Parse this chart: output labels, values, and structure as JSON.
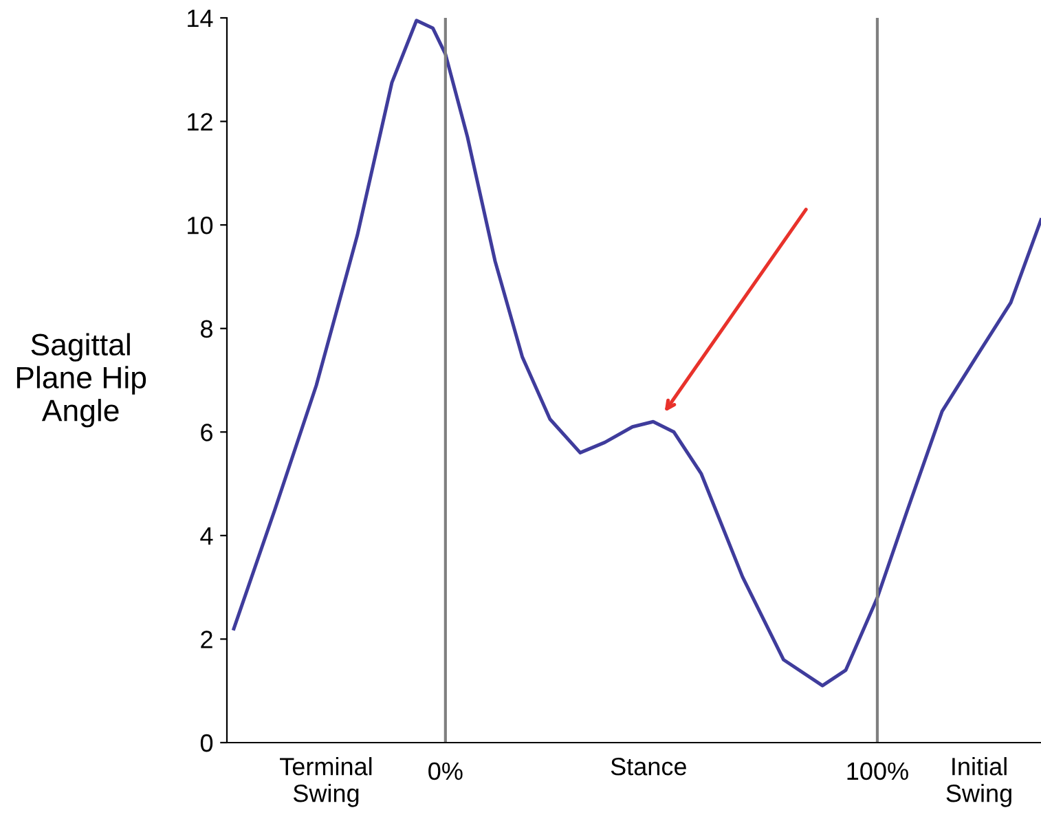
{
  "chart_data": {
    "type": "line",
    "ylabel": "Sagittal\nPlane Hip\nAngle",
    "x": [
      -49.0,
      -39.5,
      -29.9,
      -20.4,
      -12.4,
      -6.7,
      -2.9,
      0,
      5.1,
      11.5,
      17.8,
      24.2,
      31.2,
      36.9,
      43.3,
      48.1,
      52.9,
      59.2,
      68.8,
      78.3,
      87.3,
      92.7,
      100,
      107,
      115,
      122.9,
      130.9,
      137.9
    ],
    "series": [
      {
        "color": "#3f3c9c",
        "values": [
          2.2,
          4.5,
          6.9,
          9.8,
          12.75,
          13.95,
          13.8,
          13.3,
          11.7,
          9.3,
          7.45,
          6.25,
          5.6,
          5.8,
          6.1,
          6.2,
          6.0,
          5.2,
          3.2,
          1.6,
          1.1,
          1.4,
          2.8,
          4.5,
          6.4,
          7.45,
          8.5,
          10.1
        ]
      }
    ],
    "xlim": [
      -50.6,
      137.9
    ],
    "xticks": [
      {
        "value": 0,
        "label": "0%"
      },
      {
        "value": 100,
        "label": "100%"
      }
    ],
    "annotations": [
      "Terminal\nSwing",
      "Stance",
      "Initial\nSwing"
    ],
    "ylim": [
      0,
      14
    ],
    "yticks": [
      0,
      2,
      4,
      6,
      8,
      10,
      12,
      14
    ],
    "ref_lines": [
      {
        "axis": "x",
        "value": 0,
        "color": "#7f7f7f"
      },
      {
        "axis": "x",
        "value": 100,
        "color": "#7f7f7f"
      }
    ],
    "grid": false,
    "legend": false,
    "marker": "none",
    "line_style": "solid"
  }
}
